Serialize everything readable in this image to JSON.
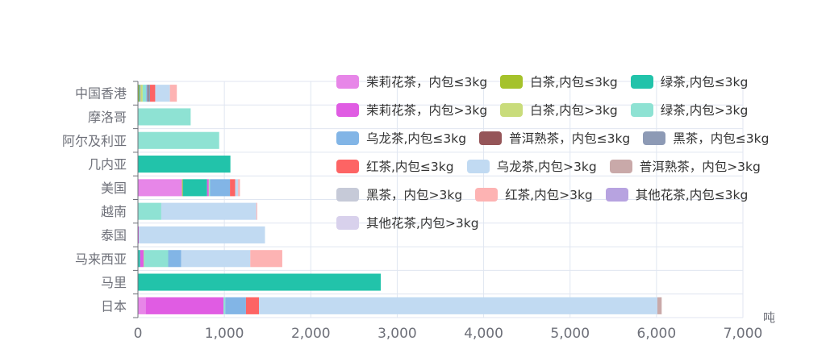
{
  "chart_data": {
    "type": "bar",
    "orientation": "horizontal",
    "stacked": true,
    "categories": [
      "日本",
      "马里",
      "马来西亚",
      "泰国",
      "越南",
      "美国",
      "几内亚",
      "阿尔及利亚",
      "摩洛哥",
      "中国香港"
    ],
    "xlim": [
      0,
      7000
    ],
    "xticks": [
      0,
      1000,
      2000,
      3000,
      4000,
      5000,
      6000,
      7000
    ],
    "xtick_labels": [
      "0",
      "1,000",
      "2,000",
      "3,000",
      "4,000",
      "5,000",
      "6,000",
      "7,000"
    ],
    "xunit": "吨",
    "grid": true,
    "legend_position": "top-right",
    "series": [
      {
        "name": "茉莉花茶，内包≤3kg",
        "color": "#e786e8",
        "values": [
          90,
          0,
          0,
          0,
          0,
          510,
          0,
          0,
          0,
          0
        ]
      },
      {
        "name": "白茶,内包≤3kg",
        "color": "#a5c22b",
        "values": [
          0,
          0,
          5,
          0,
          0,
          10,
          0,
          0,
          0,
          15
        ]
      },
      {
        "name": "绿茶,内包≤3kg",
        "color": "#22c3aa",
        "values": [
          0,
          2810,
          20,
          0,
          0,
          280,
          1070,
          0,
          0,
          10
        ]
      },
      {
        "name": "茉莉花茶，内包>3kg",
        "color": "#e05ce3",
        "values": [
          900,
          0,
          40,
          10,
          0,
          20,
          0,
          0,
          0,
          5
        ]
      },
      {
        "name": "白茶,内包>3kg",
        "color": "#c9dc7b",
        "values": [
          0,
          0,
          5,
          0,
          0,
          5,
          0,
          0,
          0,
          25
        ]
      },
      {
        "name": "绿茶,内包>3kg",
        "color": "#8ee2d3",
        "values": [
          20,
          0,
          280,
          0,
          270,
          10,
          0,
          940,
          610,
          40
        ]
      },
      {
        "name": "乌龙茶,内包≤3kg",
        "color": "#82b5e6",
        "values": [
          240,
          0,
          150,
          0,
          0,
          230,
          0,
          0,
          0,
          15
        ]
      },
      {
        "name": "普洱熟茶，内包≤3kg",
        "color": "#955558",
        "values": [
          0,
          0,
          0,
          0,
          0,
          0,
          0,
          0,
          0,
          10
        ]
      },
      {
        "name": "黑茶，内包≤3kg",
        "color": "#8d9ab5",
        "values": [
          0,
          0,
          0,
          0,
          0,
          0,
          0,
          0,
          0,
          20
        ]
      },
      {
        "name": "红茶,内包≤3kg",
        "color": "#fd6464",
        "values": [
          150,
          0,
          0,
          0,
          0,
          60,
          0,
          0,
          0,
          60
        ]
      },
      {
        "name": "乌龙茶,内包>3kg",
        "color": "#c1daf2",
        "values": [
          4610,
          0,
          800,
          1460,
          1100,
          35,
          0,
          0,
          0,
          170
        ]
      },
      {
        "name": "普洱熟茶，内包>3kg",
        "color": "#c9a9a9",
        "values": [
          50,
          0,
          0,
          0,
          0,
          0,
          0,
          0,
          0,
          0
        ]
      },
      {
        "name": "黑茶，内包>3kg",
        "color": "#c6cad8",
        "values": [
          0,
          0,
          0,
          0,
          0,
          0,
          0,
          0,
          0,
          0
        ]
      },
      {
        "name": "红茶,内包>3kg",
        "color": "#fdb3b3",
        "values": [
          0,
          0,
          370,
          0,
          10,
          20,
          0,
          0,
          0,
          80
        ]
      },
      {
        "name": "其他花茶,内包≤3kg",
        "color": "#b7a3e0",
        "values": [
          0,
          0,
          0,
          0,
          0,
          0,
          0,
          0,
          0,
          0
        ]
      },
      {
        "name": "其他花茶,内包>3kg",
        "color": "#d8d1ec",
        "values": [
          0,
          0,
          0,
          0,
          0,
          0,
          0,
          0,
          0,
          0
        ]
      }
    ]
  }
}
